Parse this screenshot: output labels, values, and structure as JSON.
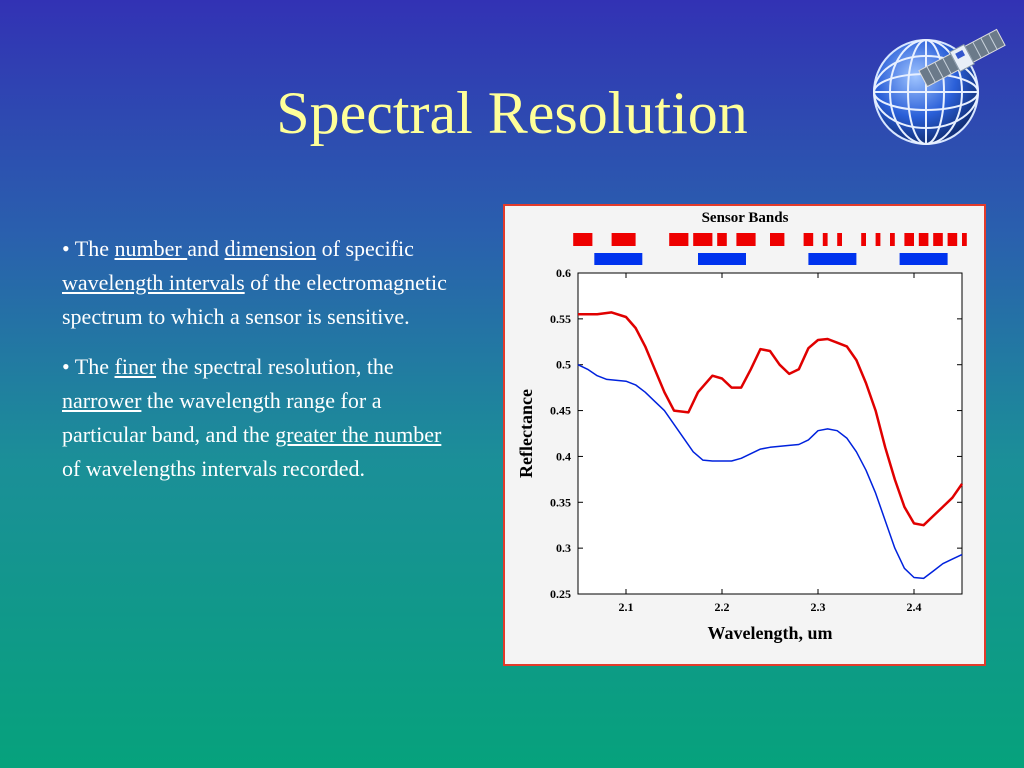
{
  "slide": {
    "title": "Spectral Resolution",
    "bullets": [
      {
        "parts": [
          {
            "text": "• The ",
            "u": false
          },
          {
            "text": "number ",
            "u": true
          },
          {
            "text": "and ",
            "u": false
          },
          {
            "text": "dimension",
            "u": true
          },
          {
            "text": " of specific ",
            "u": false
          },
          {
            "text": "wavelength intervals",
            "u": true
          },
          {
            "text": " of the electromagnetic spectrum to which a sensor is sensitive.",
            "u": false
          }
        ]
      },
      {
        "parts": [
          {
            "text": "• The ",
            "u": false
          },
          {
            "text": "finer",
            "u": true
          },
          {
            "text": " the spectral resolution, the ",
            "u": false
          },
          {
            "text": "narrower",
            "u": true
          },
          {
            "text": " the wavelength range for a particular band, and the ",
            "u": false
          },
          {
            "text": "greater the number",
            "u": true
          },
          {
            "text": " of wavelengths intervals recorded.",
            "u": false
          }
        ]
      }
    ]
  },
  "colors": {
    "title": "#ffff99",
    "high_res_band": "#ee0000",
    "low_res_band": "#0033ee",
    "red_series": "#e00000",
    "blue_series": "#0022dd"
  },
  "logo": {
    "icon": "globe-satellite-icon"
  },
  "chart_data": {
    "type": "line",
    "title": "",
    "xlabel": "Wavelength, um",
    "ylabel": "Reflectance",
    "xlim": [
      2.05,
      2.45
    ],
    "ylim": [
      0.25,
      0.6
    ],
    "xticks": [
      "2.1",
      "2.2",
      "2.3",
      "2.4"
    ],
    "yticks": [
      "0.25",
      "0.3",
      "0.35",
      "0.4",
      "0.45",
      "0.5",
      "0.55",
      "0.6"
    ],
    "grid": false,
    "series": [
      {
        "name": "",
        "color": "#e00000",
        "points": [
          [
            2.05,
            0.555
          ],
          [
            2.07,
            0.555
          ],
          [
            2.085,
            0.557
          ],
          [
            2.1,
            0.552
          ],
          [
            2.11,
            0.54
          ],
          [
            2.12,
            0.52
          ],
          [
            2.13,
            0.495
          ],
          [
            2.14,
            0.47
          ],
          [
            2.15,
            0.45
          ],
          [
            2.165,
            0.448
          ],
          [
            2.175,
            0.47
          ],
          [
            2.19,
            0.488
          ],
          [
            2.2,
            0.485
          ],
          [
            2.21,
            0.475
          ],
          [
            2.22,
            0.475
          ],
          [
            2.23,
            0.495
          ],
          [
            2.24,
            0.517
          ],
          [
            2.25,
            0.515
          ],
          [
            2.26,
            0.5
          ],
          [
            2.27,
            0.49
          ],
          [
            2.28,
            0.495
          ],
          [
            2.29,
            0.518
          ],
          [
            2.3,
            0.527
          ],
          [
            2.31,
            0.528
          ],
          [
            2.32,
            0.524
          ],
          [
            2.33,
            0.52
          ],
          [
            2.34,
            0.505
          ],
          [
            2.35,
            0.48
          ],
          [
            2.36,
            0.45
          ],
          [
            2.37,
            0.41
          ],
          [
            2.38,
            0.375
          ],
          [
            2.39,
            0.345
          ],
          [
            2.4,
            0.327
          ],
          [
            2.41,
            0.325
          ],
          [
            2.42,
            0.335
          ],
          [
            2.43,
            0.345
          ],
          [
            2.44,
            0.355
          ],
          [
            2.45,
            0.37
          ]
        ]
      },
      {
        "name": "",
        "color": "#0022dd",
        "points": [
          [
            2.05,
            0.5
          ],
          [
            2.06,
            0.495
          ],
          [
            2.07,
            0.488
          ],
          [
            2.08,
            0.484
          ],
          [
            2.1,
            0.482
          ],
          [
            2.11,
            0.478
          ],
          [
            2.12,
            0.47
          ],
          [
            2.13,
            0.46
          ],
          [
            2.14,
            0.45
          ],
          [
            2.15,
            0.435
          ],
          [
            2.16,
            0.42
          ],
          [
            2.17,
            0.405
          ],
          [
            2.18,
            0.396
          ],
          [
            2.19,
            0.395
          ],
          [
            2.21,
            0.395
          ],
          [
            2.22,
            0.398
          ],
          [
            2.23,
            0.403
          ],
          [
            2.24,
            0.408
          ],
          [
            2.25,
            0.41
          ],
          [
            2.27,
            0.412
          ],
          [
            2.28,
            0.413
          ],
          [
            2.29,
            0.418
          ],
          [
            2.3,
            0.428
          ],
          [
            2.31,
            0.43
          ],
          [
            2.32,
            0.428
          ],
          [
            2.33,
            0.42
          ],
          [
            2.34,
            0.405
          ],
          [
            2.35,
            0.385
          ],
          [
            2.36,
            0.36
          ],
          [
            2.37,
            0.33
          ],
          [
            2.38,
            0.3
          ],
          [
            2.39,
            0.278
          ],
          [
            2.4,
            0.268
          ],
          [
            2.41,
            0.267
          ],
          [
            2.42,
            0.275
          ],
          [
            2.43,
            0.283
          ],
          [
            2.44,
            0.288
          ],
          [
            2.45,
            0.293
          ]
        ]
      }
    ],
    "sensor_bands": {
      "title": "Sensor Bands",
      "high_res": [
        [
          2.045,
          2.065
        ],
        [
          2.085,
          2.11
        ],
        [
          2.145,
          2.165
        ],
        [
          2.17,
          2.19
        ],
        [
          2.195,
          2.205
        ],
        [
          2.215,
          2.235
        ],
        [
          2.25,
          2.265
        ],
        [
          2.285,
          2.295
        ],
        [
          2.305,
          2.31
        ],
        [
          2.32,
          2.325
        ],
        [
          2.345,
          2.35
        ],
        [
          2.36,
          2.365
        ],
        [
          2.375,
          2.38
        ],
        [
          2.39,
          2.4
        ],
        [
          2.405,
          2.415
        ],
        [
          2.42,
          2.43
        ],
        [
          2.435,
          2.445
        ],
        [
          2.45,
          2.455
        ]
      ],
      "low_res": [
        [
          2.067,
          2.117
        ],
        [
          2.175,
          2.225
        ],
        [
          2.29,
          2.34
        ],
        [
          2.385,
          2.435
        ]
      ]
    }
  }
}
